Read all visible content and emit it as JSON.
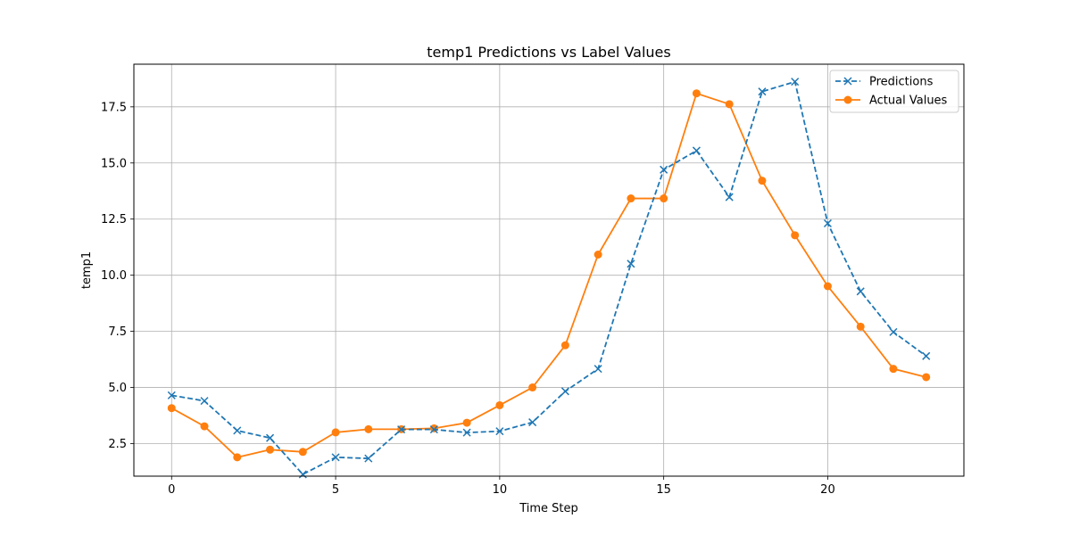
{
  "chart_data": {
    "type": "line",
    "title": "temp1 Predictions vs Label Values",
    "xlabel": "Time Step",
    "ylabel": "temp1",
    "xlim": [
      -1.15,
      24.15
    ],
    "ylim": [
      1.05,
      19.4
    ],
    "xticks": [
      0,
      5,
      10,
      15,
      20
    ],
    "xtick_labels": [
      "0",
      "5",
      "10",
      "15",
      "20"
    ],
    "yticks": [
      2.5,
      5.0,
      7.5,
      10.0,
      12.5,
      15.0,
      17.5
    ],
    "ytick_labels": [
      "2.5",
      "5.0",
      "7.5",
      "10.0",
      "12.5",
      "15.0",
      "17.5"
    ],
    "grid": true,
    "legend_position": "upper-right",
    "x": [
      0,
      1,
      2,
      3,
      4,
      5,
      6,
      7,
      8,
      9,
      10,
      11,
      12,
      13,
      14,
      15,
      16,
      17,
      18,
      19,
      20,
      21,
      22,
      23
    ],
    "series": [
      {
        "name": "Predictions",
        "color": "#1f77b4",
        "linestyle": "dashed",
        "marker": "x",
        "values": [
          4.65,
          4.4,
          3.08,
          2.75,
          1.13,
          1.89,
          1.84,
          3.13,
          3.13,
          2.99,
          3.05,
          3.45,
          4.83,
          5.83,
          10.51,
          14.7,
          15.55,
          13.48,
          18.18,
          18.62,
          12.31,
          9.28,
          7.47,
          6.4
        ]
      },
      {
        "name": "Actual Values",
        "color": "#ff7f0e",
        "linestyle": "solid",
        "marker": "o",
        "values": [
          4.08,
          3.27,
          1.89,
          2.23,
          2.13,
          3.0,
          3.14,
          3.14,
          3.18,
          3.43,
          4.21,
          5.0,
          6.88,
          10.92,
          13.42,
          13.42,
          18.1,
          17.62,
          14.21,
          11.78,
          9.51,
          7.71,
          5.83,
          5.46
        ]
      }
    ]
  }
}
